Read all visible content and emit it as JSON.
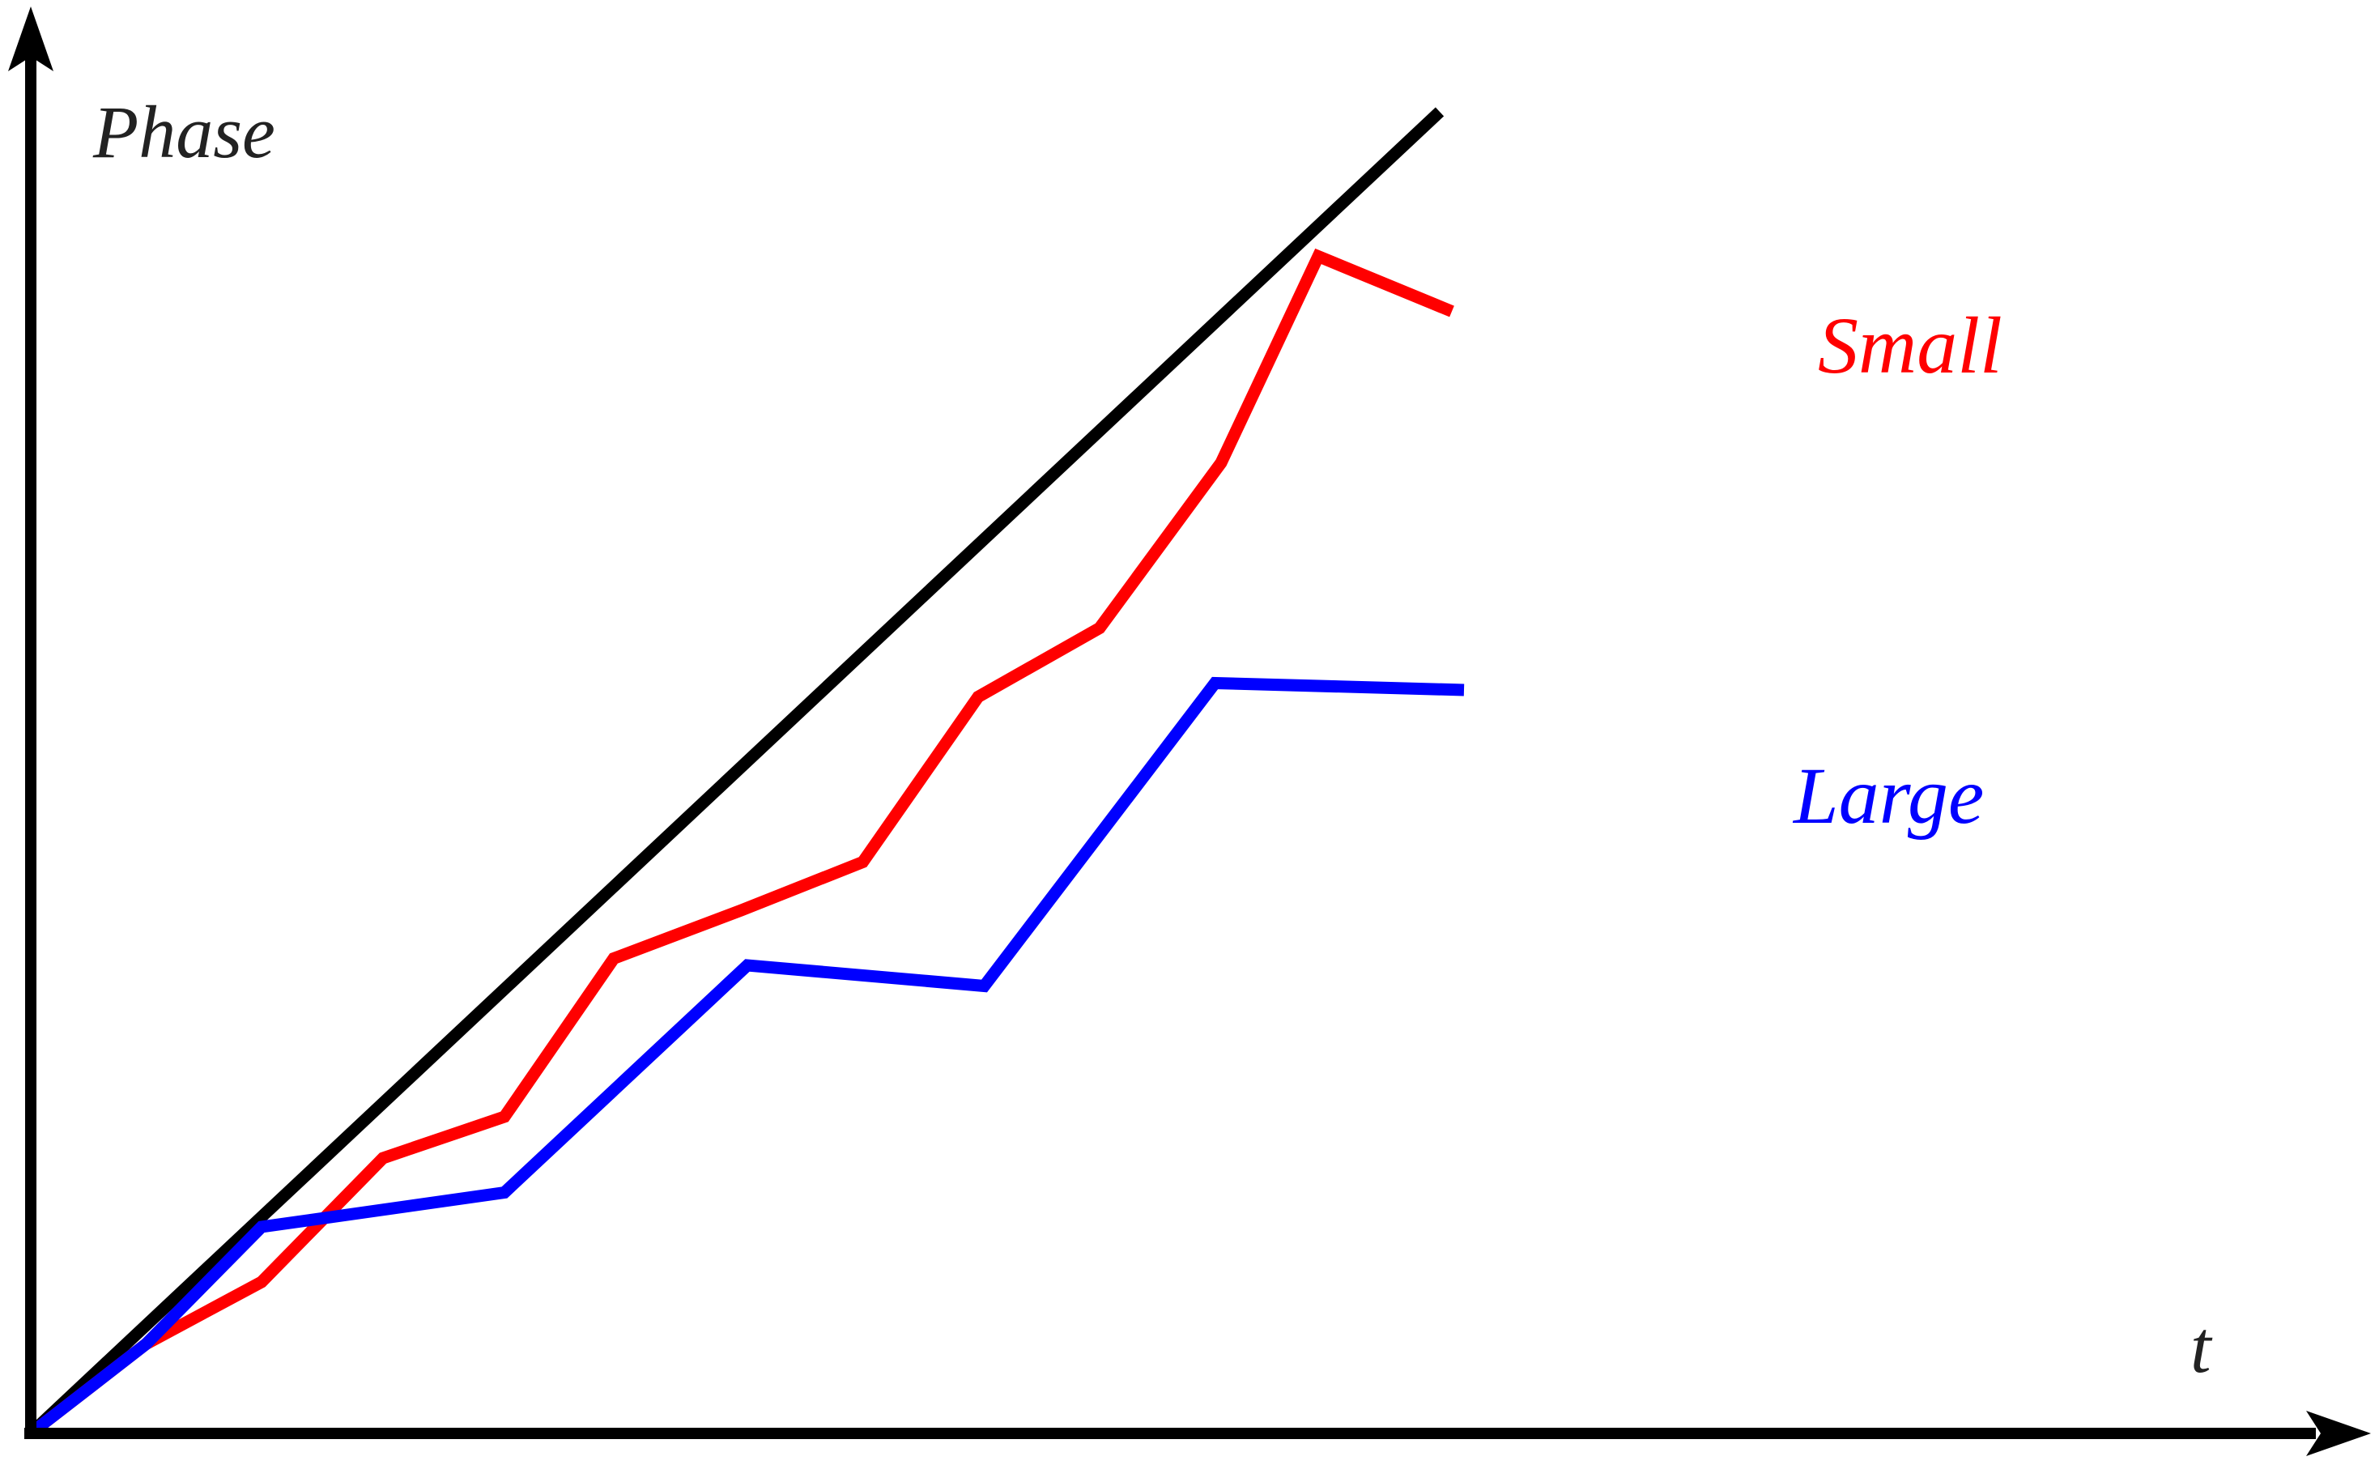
{
  "chart_data": {
    "type": "line",
    "xlabel": "t",
    "ylabel": "Phase",
    "xlim": [
      0,
      15
    ],
    "ylim": [
      0,
      10
    ],
    "grid": false,
    "legend": "inline",
    "series": [
      {
        "name": "",
        "color": "#000000",
        "x": [
          0,
          11.6
        ],
        "y": [
          0,
          9.6
        ]
      },
      {
        "name": "Small",
        "color": "#ff0000",
        "x": [
          0,
          0.95,
          1.9,
          2.9,
          3.9,
          4.8,
          5.85,
          6.85,
          7.8,
          8.8,
          9.8,
          10.6,
          11.7
        ],
        "y": [
          0,
          0.65,
          1.1,
          2.0,
          2.3,
          3.45,
          3.8,
          4.15,
          5.35,
          5.85,
          7.05,
          8.55,
          8.15
        ]
      },
      {
        "name": "Large",
        "color": "#0000ff",
        "x": [
          0,
          0.95,
          1.9,
          3.9,
          5.9,
          7.85,
          9.75,
          11.8
        ],
        "y": [
          0,
          0.65,
          1.5,
          1.75,
          3.4,
          3.25,
          5.45,
          5.4
        ]
      }
    ],
    "annotations": [
      {
        "text": "Small",
        "color": "#ff0000"
      },
      {
        "text": "Large",
        "color": "#0000ff"
      }
    ]
  }
}
